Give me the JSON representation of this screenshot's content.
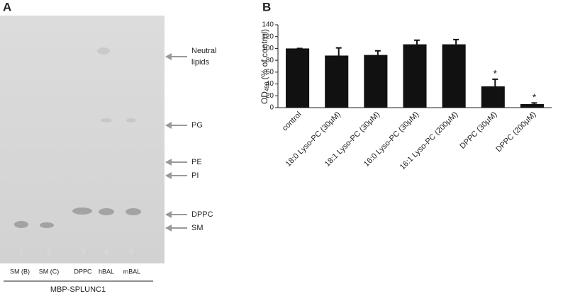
{
  "panel_labels": [
    "A",
    "B"
  ],
  "panel_a": {
    "lane_numbers": [
      "1",
      "2",
      "3",
      "4",
      "5"
    ],
    "lane_names": [
      "SM (B)",
      "SM (C)",
      "DPPC",
      "hBAL",
      "mBAL"
    ],
    "group_label": "MBP-SPLUNC1",
    "markers": [
      "Neutral",
      "lipids",
      "PG",
      "PE",
      "PI",
      "DPPC",
      "SM"
    ]
  },
  "chart_data": {
    "type": "bar",
    "ylabel_parts": [
      "OD",
      "490",
      " (% of control)"
    ],
    "categories": [
      "control",
      "18:0 Lyso-PC (30μM)",
      "18:1 Lyso-PC (30μM)",
      "16:0 Lyso-PC (30μM)",
      "16:1 Lyso-PC (200μM)",
      "DPPC (30μM)",
      "DPPC (200μM)"
    ],
    "values": [
      100,
      88,
      89,
      107,
      107,
      36,
      6
    ],
    "errors": [
      0,
      13,
      7,
      7,
      8,
      12,
      2
    ],
    "annotations": [
      null,
      null,
      null,
      null,
      null,
      "*",
      "*"
    ],
    "color": "#111111",
    "ylim": [
      0,
      140
    ],
    "yticks": [
      0,
      20,
      40,
      60,
      80,
      100,
      120,
      140
    ]
  }
}
